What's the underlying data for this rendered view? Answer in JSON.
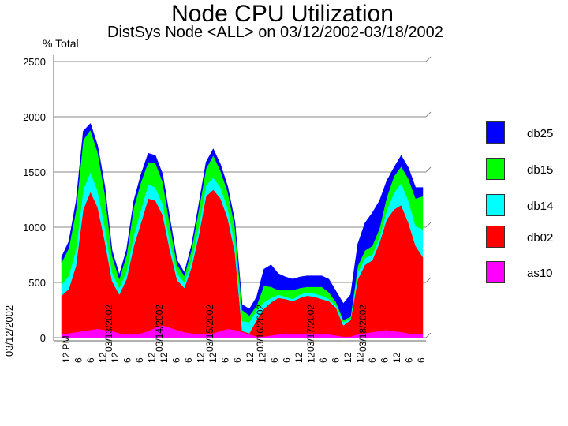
{
  "title": "Node CPU Utilization",
  "subtitle": "DistSys Node <ALL> on 03/12/2002-03/18/2002",
  "chart_data": {
    "type": "area",
    "stacked": true,
    "ylabel": "% Total",
    "ylim": [
      0,
      2500
    ],
    "yticks": [
      0,
      500,
      1000,
      1500,
      2000,
      2500
    ],
    "grid": true,
    "legend_placement": "right",
    "date_label": "03/12/2002",
    "x_tick_labels": [
      "12 PM",
      "6",
      "6",
      "12",
      "12",
      "6",
      "6",
      "12",
      "12",
      "6",
      "6",
      "12",
      "12",
      "6",
      "6",
      "12",
      "12",
      "6",
      "6",
      "12",
      "12",
      "6",
      "6",
      "12",
      "12",
      "6",
      "6",
      "12",
      "6",
      "6"
    ],
    "x_tick_labels_partial": [
      "03/13/2002",
      "03/14/2002",
      "03/15/2002",
      "03/16/2002",
      "03/17/2002",
      "03/18/2002"
    ],
    "x": [
      0,
      2,
      4,
      6,
      8,
      10,
      12,
      14,
      16,
      18,
      20,
      22,
      24,
      26,
      28,
      30,
      32,
      34,
      36,
      38,
      40,
      42,
      44,
      46,
      48,
      50,
      52,
      54,
      56,
      58,
      60,
      62,
      64,
      66,
      68,
      70,
      72,
      74,
      76,
      78,
      80,
      82,
      84,
      86,
      88,
      90,
      92,
      94,
      96,
      98,
      100
    ],
    "series": [
      {
        "name": "as10",
        "color": "#ff00ff",
        "values": [
          30,
          40,
          50,
          60,
          70,
          80,
          70,
          60,
          40,
          30,
          30,
          40,
          60,
          90,
          110,
          90,
          70,
          50,
          40,
          30,
          30,
          40,
          60,
          80,
          70,
          50,
          30,
          10,
          10,
          20,
          30,
          40,
          30,
          30,
          30,
          30,
          30,
          30,
          20,
          10,
          10,
          30,
          40,
          50,
          60,
          70,
          60,
          50,
          40,
          30,
          30
        ]
      },
      {
        "name": "db02",
        "color": "#ff0000",
        "values": [
          350,
          400,
          600,
          1100,
          1250,
          1100,
          800,
          450,
          350,
          500,
          800,
          1000,
          1200,
          1150,
          1000,
          700,
          450,
          400,
          600,
          900,
          1250,
          1300,
          1200,
          1000,
          700,
          10,
          10,
          150,
          250,
          300,
          330,
          310,
          300,
          330,
          350,
          340,
          320,
          300,
          250,
          100,
          150,
          500,
          620,
          650,
          800,
          1000,
          1100,
          1150,
          1000,
          800,
          700
        ]
      },
      {
        "name": "db14",
        "color": "#00ffff",
        "values": [
          100,
          120,
          150,
          180,
          180,
          150,
          130,
          80,
          60,
          70,
          100,
          120,
          130,
          120,
          100,
          80,
          60,
          50,
          60,
          80,
          100,
          110,
          100,
          90,
          80,
          90,
          100,
          90,
          60,
          40,
          30,
          20,
          20,
          30,
          30,
          30,
          30,
          20,
          20,
          30,
          10,
          60,
          60,
          50,
          50,
          80,
          150,
          200,
          200,
          180,
          250
        ]
      },
      {
        "name": "db15",
        "color": "#00ff00",
        "values": [
          200,
          250,
          350,
          450,
          380,
          350,
          300,
          150,
          80,
          150,
          250,
          250,
          200,
          220,
          200,
          150,
          80,
          60,
          100,
          150,
          150,
          200,
          150,
          150,
          150,
          100,
          60,
          40,
          150,
          100,
          40,
          60,
          80,
          60,
          50,
          60,
          80,
          60,
          30,
          20,
          20,
          60,
          70,
          80,
          80,
          120,
          150,
          150,
          200,
          250,
          300
        ]
      },
      {
        "name": "db25",
        "color": "#0000ff",
        "values": [
          50,
          60,
          80,
          80,
          60,
          60,
          70,
          50,
          40,
          50,
          60,
          70,
          80,
          70,
          70,
          60,
          40,
          30,
          40,
          50,
          60,
          60,
          60,
          50,
          50,
          50,
          60,
          80,
          150,
          200,
          150,
          120,
          100,
          100,
          100,
          100,
          100,
          120,
          100,
          150,
          200,
          200,
          250,
          300,
          250,
          150,
          80,
          100,
          100,
          100,
          80
        ]
      }
    ]
  },
  "legend_order": [
    "db25",
    "db15",
    "db14",
    "db02",
    "as10"
  ]
}
